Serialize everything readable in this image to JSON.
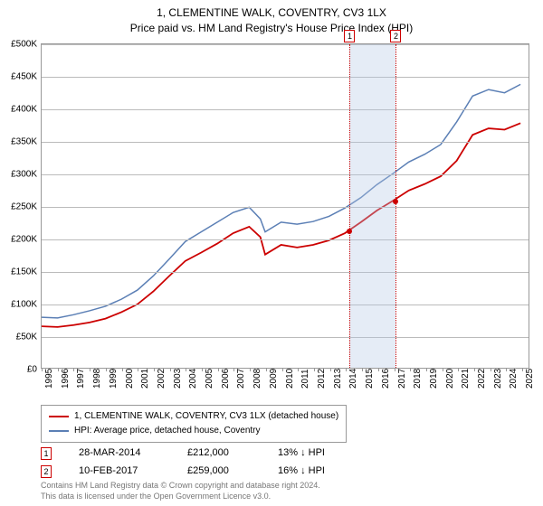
{
  "title": "1, CLEMENTINE WALK, COVENTRY, CV3 1LX",
  "subtitle": "Price paid vs. HM Land Registry's House Price Index (HPI)",
  "chart": {
    "type": "line",
    "background_color": "#ffffff",
    "grid_color": "#bbbbbb",
    "border_color": "#999999",
    "y": {
      "min": 0,
      "max": 500000,
      "tick_step": 50000,
      "labels": [
        "£0",
        "£50K",
        "£100K",
        "£150K",
        "£200K",
        "£250K",
        "£300K",
        "£350K",
        "£400K",
        "£450K",
        "£500K"
      ],
      "label_fontsize": 10
    },
    "x": {
      "min": 1995,
      "max": 2025.5,
      "ticks": [
        1995,
        1996,
        1997,
        1998,
        1999,
        2000,
        2001,
        2002,
        2003,
        2004,
        2005,
        2006,
        2007,
        2008,
        2009,
        2010,
        2011,
        2012,
        2013,
        2014,
        2015,
        2016,
        2017,
        2018,
        2019,
        2020,
        2021,
        2022,
        2023,
        2024,
        2025
      ],
      "label_fontsize": 10
    },
    "highlight_band": {
      "start_year": 2014.23,
      "end_year": 2017.11,
      "color": "rgba(180,200,230,0.35)"
    },
    "markers": [
      {
        "id": "1",
        "year": 2014.23,
        "line_color": "#cc0000"
      },
      {
        "id": "2",
        "year": 2017.11,
        "line_color": "#cc0000"
      }
    ],
    "series": [
      {
        "name": "price_paid",
        "label": "1, CLEMENTINE WALK, COVENTRY, CV3 1LX (detached house)",
        "color": "#cc0000",
        "line_width": 1.8,
        "points": [
          [
            1995,
            64000
          ],
          [
            1996,
            63000
          ],
          [
            1997,
            66000
          ],
          [
            1998,
            70000
          ],
          [
            1999,
            76000
          ],
          [
            2000,
            86000
          ],
          [
            2001,
            98000
          ],
          [
            2002,
            118000
          ],
          [
            2003,
            142000
          ],
          [
            2004,
            165000
          ],
          [
            2005,
            178000
          ],
          [
            2006,
            192000
          ],
          [
            2007,
            208000
          ],
          [
            2008,
            218000
          ],
          [
            2008.7,
            202000
          ],
          [
            2009,
            175000
          ],
          [
            2010,
            190000
          ],
          [
            2011,
            186000
          ],
          [
            2012,
            190000
          ],
          [
            2013,
            197000
          ],
          [
            2014,
            208000
          ],
          [
            2015,
            225000
          ],
          [
            2016,
            243000
          ],
          [
            2017,
            258000
          ],
          [
            2018,
            274000
          ],
          [
            2019,
            284000
          ],
          [
            2020,
            296000
          ],
          [
            2021,
            320000
          ],
          [
            2022,
            360000
          ],
          [
            2023,
            370000
          ],
          [
            2024,
            368000
          ],
          [
            2025,
            378000
          ]
        ]
      },
      {
        "name": "hpi",
        "label": "HPI: Average price, detached house, Coventry",
        "color": "#5b7fb5",
        "line_width": 1.5,
        "points": [
          [
            1995,
            78000
          ],
          [
            1996,
            77000
          ],
          [
            1997,
            82000
          ],
          [
            1998,
            88000
          ],
          [
            1999,
            95000
          ],
          [
            2000,
            106000
          ],
          [
            2001,
            120000
          ],
          [
            2002,
            142000
          ],
          [
            2003,
            168000
          ],
          [
            2004,
            195000
          ],
          [
            2005,
            210000
          ],
          [
            2006,
            225000
          ],
          [
            2007,
            240000
          ],
          [
            2008,
            248000
          ],
          [
            2008.7,
            230000
          ],
          [
            2009,
            210000
          ],
          [
            2010,
            225000
          ],
          [
            2011,
            222000
          ],
          [
            2012,
            226000
          ],
          [
            2013,
            234000
          ],
          [
            2014,
            247000
          ],
          [
            2015,
            263000
          ],
          [
            2016,
            283000
          ],
          [
            2017,
            300000
          ],
          [
            2018,
            318000
          ],
          [
            2019,
            330000
          ],
          [
            2020,
            345000
          ],
          [
            2021,
            380000
          ],
          [
            2022,
            420000
          ],
          [
            2023,
            430000
          ],
          [
            2024,
            425000
          ],
          [
            2025,
            438000
          ]
        ]
      }
    ],
    "data_points": [
      {
        "year": 2014.23,
        "value": 212000,
        "color": "#cc0000"
      },
      {
        "year": 2017.11,
        "value": 259000,
        "color": "#cc0000"
      }
    ]
  },
  "legend": {
    "series1_label": "1, CLEMENTINE WALK, COVENTRY, CV3 1LX (detached house)",
    "series2_label": "HPI: Average price, detached house, Coventry",
    "series1_color": "#cc0000",
    "series2_color": "#5b7fb5"
  },
  "transactions": [
    {
      "id": "1",
      "date": "28-MAR-2014",
      "price": "£212,000",
      "diff": "13% ↓ HPI"
    },
    {
      "id": "2",
      "date": "10-FEB-2017",
      "price": "£259,000",
      "diff": "16% ↓ HPI"
    }
  ],
  "footnote_line1": "Contains HM Land Registry data © Crown copyright and database right 2024.",
  "footnote_line2": "This data is licensed under the Open Government Licence v3.0."
}
